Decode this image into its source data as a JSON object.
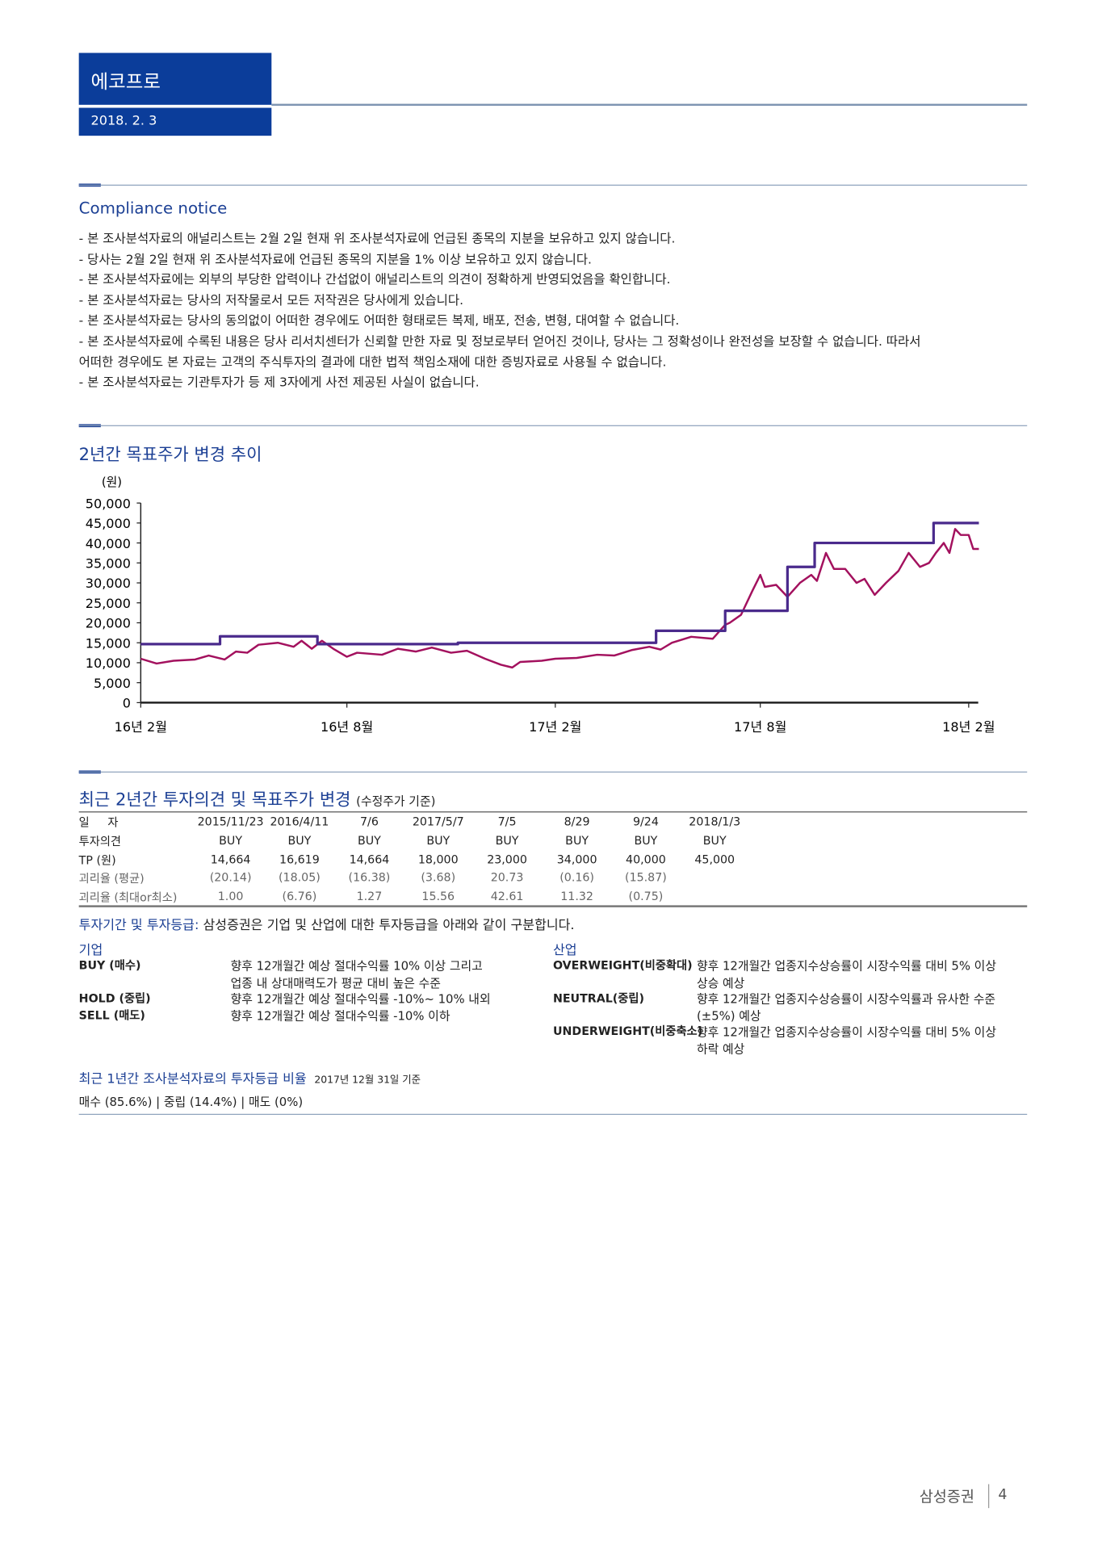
{
  "header": {
    "company": "에코프로",
    "date": "2018. 2. 3"
  },
  "compliance": {
    "title": "Compliance notice",
    "lines": [
      "- 본 조사분석자료의 애널리스트는 2월 2일 현재 위 조사분석자료에 언급된 종목의 지분을 보유하고 있지 않습니다.",
      "- 당사는 2월 2일 현재 위 조사분석자료에 언급된 종목의 지분을 1% 이상 보유하고 있지 않습니다.",
      "- 본 조사분석자료에는 외부의 부당한 압력이나 간섭없이 애널리스트의 의견이 정확하게 반영되었음을 확인합니다.",
      "- 본 조사분석자료는 당사의 저작물로서 모든 저작권은 당사에게 있습니다.",
      "- 본 조사분석자료는 당사의 동의없이 어떠한 경우에도 어떠한 형태로든 복제, 배포, 전송, 변형, 대여할 수 없습니다.",
      "- 본 조사분석자료에 수록된 내용은 당사 리서치센터가 신뢰할 만한 자료 및 정보로부터 얻어진 것이나, 당사는 그 정확성이나 완전성을 보장할 수 없습니다. 따라서",
      "   어떠한 경우에도 본 자료는 고객의 주식투자의 결과에 대한 법적 책임소재에 대한 증빙자료로 사용될 수 없습니다.",
      "- 본 조사분석자료는 기관투자가 등 제 3자에게 사전 제공된 사실이 없습니다."
    ]
  },
  "chart_section": {
    "title": "2년간 목표주가 변경 추이"
  },
  "chart_data": {
    "type": "line",
    "ylabel": "(원)",
    "ylim": [
      0,
      50000
    ],
    "yticks": [
      "50,000",
      "45,000",
      "40,000",
      "35,000",
      "30,000",
      "25,000",
      "20,000",
      "15,000",
      "10,000",
      "5,000",
      "0"
    ],
    "xticks": [
      {
        "label": "16년 2월",
        "date": "2016-02-01"
      },
      {
        "label": "16년 8월",
        "date": "2016-08-01"
      },
      {
        "label": "17년 2월",
        "date": "2017-02-01"
      },
      {
        "label": "17년 8월",
        "date": "2017-08-01"
      },
      {
        "label": "18년 2월",
        "date": "2018-02-01"
      }
    ],
    "grid": false,
    "colors": {
      "price": "#a3115e",
      "target": "#4a2a8c"
    },
    "series": [
      {
        "key": "price",
        "points": [
          [
            "2016-02-01",
            11000
          ],
          [
            "2016-02-15",
            9800
          ],
          [
            "2016-03-01",
            10500
          ],
          [
            "2016-03-20",
            10800
          ],
          [
            "2016-04-01",
            11800
          ],
          [
            "2016-04-15",
            10800
          ],
          [
            "2016-04-25",
            12800
          ],
          [
            "2016-05-05",
            12500
          ],
          [
            "2016-05-15",
            14500
          ],
          [
            "2016-06-01",
            15000
          ],
          [
            "2016-06-15",
            14000
          ],
          [
            "2016-06-22",
            15500
          ],
          [
            "2016-07-01",
            13500
          ],
          [
            "2016-07-10",
            15500
          ],
          [
            "2016-07-20",
            13500
          ],
          [
            "2016-08-01",
            11500
          ],
          [
            "2016-08-10",
            12500
          ],
          [
            "2016-09-01",
            12000
          ],
          [
            "2016-09-15",
            13500
          ],
          [
            "2016-10-01",
            12800
          ],
          [
            "2016-10-15",
            13800
          ],
          [
            "2016-11-01",
            12500
          ],
          [
            "2016-11-15",
            13000
          ],
          [
            "2016-12-01",
            11000
          ],
          [
            "2016-12-15",
            9500
          ],
          [
            "2016-12-25",
            8800
          ],
          [
            "2017-01-01",
            10200
          ],
          [
            "2017-01-20",
            10500
          ],
          [
            "2017-02-01",
            11000
          ],
          [
            "2017-02-20",
            11200
          ],
          [
            "2017-03-10",
            12000
          ],
          [
            "2017-03-25",
            11800
          ],
          [
            "2017-04-10",
            13200
          ],
          [
            "2017-04-25",
            14000
          ],
          [
            "2017-05-05",
            13300
          ],
          [
            "2017-05-15",
            15000
          ],
          [
            "2017-06-01",
            16500
          ],
          [
            "2017-06-20",
            16000
          ],
          [
            "2017-07-01",
            19500
          ],
          [
            "2017-07-05",
            20000
          ],
          [
            "2017-07-15",
            22000
          ],
          [
            "2017-07-25",
            28000
          ],
          [
            "2017-08-01",
            32000
          ],
          [
            "2017-08-05",
            29000
          ],
          [
            "2017-08-15",
            29500
          ],
          [
            "2017-08-25",
            26500
          ],
          [
            "2017-09-05",
            30000
          ],
          [
            "2017-09-15",
            32000
          ],
          [
            "2017-09-20",
            30500
          ],
          [
            "2017-09-28",
            37500
          ],
          [
            "2017-10-05",
            33500
          ],
          [
            "2017-10-15",
            33500
          ],
          [
            "2017-10-25",
            30000
          ],
          [
            "2017-11-01",
            31000
          ],
          [
            "2017-11-10",
            27000
          ],
          [
            "2017-11-20",
            30000
          ],
          [
            "2017-12-01",
            33000
          ],
          [
            "2017-12-10",
            37500
          ],
          [
            "2017-12-20",
            34000
          ],
          [
            "2017-12-28",
            35000
          ],
          [
            "2018-01-03",
            37500
          ],
          [
            "2018-01-10",
            40000
          ],
          [
            "2018-01-15",
            37500
          ],
          [
            "2018-01-20",
            43500
          ],
          [
            "2018-01-25",
            42000
          ],
          [
            "2018-02-01",
            42000
          ],
          [
            "2018-02-05",
            38500
          ],
          [
            "2018-02-10",
            38500
          ]
        ]
      },
      {
        "key": "target",
        "step": true,
        "points": [
          [
            "2016-02-01",
            14664
          ],
          [
            "2016-04-11",
            16619
          ],
          [
            "2016-07-06",
            14664
          ],
          [
            "2016-11-07",
            15000
          ],
          [
            "2017-05-01",
            18000
          ],
          [
            "2017-07-01",
            23000
          ],
          [
            "2017-08-25",
            34000
          ],
          [
            "2017-09-18",
            40000
          ],
          [
            "2018-01-01",
            45000
          ],
          [
            "2018-02-10",
            45000
          ]
        ]
      }
    ]
  },
  "history": {
    "title": "최근 2년간 투자의견 및 목표주가 변경",
    "subtitle": "(수정주가 기준)",
    "rows": [
      {
        "label": "일     자",
        "values": [
          "2015/11/23",
          "2016/4/11",
          "7/6",
          "2017/5/7",
          "7/5",
          "8/29",
          "9/24",
          "2018/1/3"
        ],
        "grey": false
      },
      {
        "label": "투자의견",
        "values": [
          "BUY",
          "BUY",
          "BUY",
          "BUY",
          "BUY",
          "BUY",
          "BUY",
          "BUY"
        ],
        "grey": false
      },
      {
        "label": "TP (원)",
        "values": [
          "14,664",
          "16,619",
          "14,664",
          "18,000",
          "23,000",
          "34,000",
          "40,000",
          "45,000"
        ],
        "grey": false
      },
      {
        "label": "괴리율 (평균)",
        "values": [
          "(20.14)",
          "(18.05)",
          "(16.38)",
          "(3.68)",
          "20.73",
          "(0.16)",
          "(15.87)",
          ""
        ],
        "grey": true
      },
      {
        "label": "괴리율 (최대or최소)",
        "values": [
          "1.00",
          "(6.76)",
          "1.27",
          "15.56",
          "42.61",
          "11.32",
          "(0.75)",
          ""
        ],
        "grey": true
      }
    ]
  },
  "ratings": {
    "intro_title": "투자기간 및 투자등급:",
    "intro_text": "삼성증권은 기업 및 산업에 대한 투자등급을 아래와 같이 구분합니다.",
    "company_title": "기업",
    "company": [
      {
        "grade": "BUY (매수)",
        "desc": [
          "향후 12개월간 예상 절대수익률 10% 이상 그리고",
          "업종 내 상대매력도가 평균 대비 높은 수준"
        ]
      },
      {
        "grade": "HOLD (중립)",
        "desc": [
          "향후 12개월간 예상 절대수익률 -10%~ 10% 내외"
        ]
      },
      {
        "grade": "SELL (매도)",
        "desc": [
          "향후 12개월간 예상 절대수익률 -10% 이하"
        ]
      }
    ],
    "industry_title": "산업",
    "industry": [
      {
        "grade": "OVERWEIGHT(비중확대)",
        "desc": [
          "향후 12개월간 업종지수상승률이 시장수익률 대비 5% 이상",
          "상승 예상"
        ]
      },
      {
        "grade": "NEUTRAL(중립)",
        "desc": [
          "향후 12개월간 업종지수상승률이 시장수익률과 유사한 수준",
          "(±5%) 예상"
        ]
      },
      {
        "grade": "UNDERWEIGHT(비중축소)",
        "desc": [
          "향후 12개월간 업종지수상승률이 시장수익률 대비 5% 이상",
          "하락 예상"
        ]
      }
    ],
    "ratio_title": "최근 1년간 조사분석자료의 투자등급 비율",
    "ratio_date": "2017년 12월 31일 기준",
    "ratio_text": "매수 (85.6%) | 중립 (14.4%) | 매도 (0%)"
  },
  "footer": {
    "brand": "삼성증권",
    "page": "4"
  }
}
